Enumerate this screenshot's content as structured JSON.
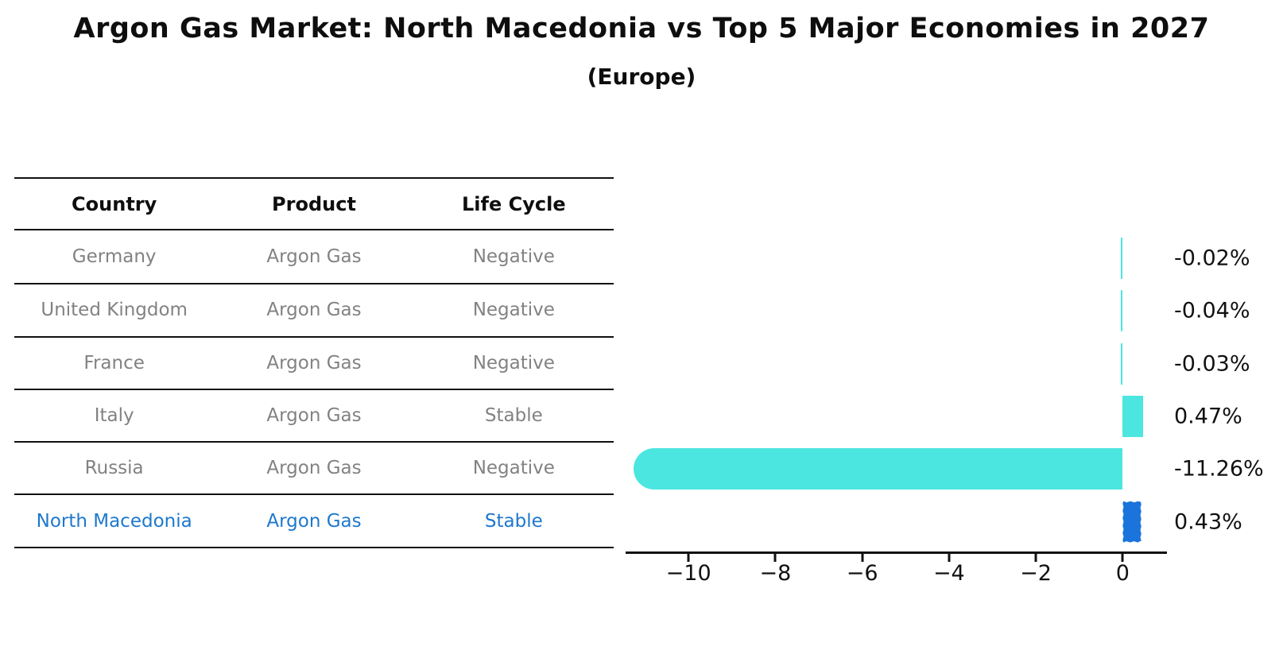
{
  "title": "Argon Gas Market: North Macedonia vs Top 5 Major Economies in 2027",
  "subtitle": "(Europe)",
  "table": {
    "headers": [
      "Country",
      "Product",
      "Life Cycle"
    ],
    "rows": [
      {
        "country": "Germany",
        "product": "Argon Gas",
        "life_cycle": "Negative",
        "highlight": false
      },
      {
        "country": "United Kingdom",
        "product": "Argon Gas",
        "life_cycle": "Negative",
        "highlight": false
      },
      {
        "country": "France",
        "product": "Argon Gas",
        "life_cycle": "Negative",
        "highlight": false
      },
      {
        "country": "Italy",
        "product": "Argon Gas",
        "life_cycle": "Stable",
        "highlight": false
      },
      {
        "country": "Russia",
        "product": "Argon Gas",
        "life_cycle": "Negative",
        "highlight": false
      },
      {
        "country": "North Macedonia",
        "product": "Argon Gas",
        "life_cycle": "Stable",
        "highlight": true
      }
    ]
  },
  "chart_data": {
    "type": "bar",
    "orientation": "horizontal",
    "title": "Argon Gas Market: North Macedonia vs Top 5 Major Economies in 2027 (Europe)",
    "categories": [
      "Germany",
      "United Kingdom",
      "France",
      "Italy",
      "Russia",
      "North Macedonia"
    ],
    "values": [
      -0.02,
      -0.04,
      -0.03,
      0.47,
      -11.26,
      0.43
    ],
    "bar_labels": [
      "-0.02%",
      "-0.04%",
      "-0.03%",
      "0.47%",
      "-11.26%",
      "0.43%"
    ],
    "bar_colors": [
      "#4BE6E0",
      "#4BE6E0",
      "#4BE6E0",
      "#4BE6E0",
      "#4BE6E0",
      "#1B74DB"
    ],
    "bar_styles": [
      "plain",
      "plain",
      "plain",
      "plain",
      "round",
      "sketch"
    ],
    "xlabel": "",
    "ylabel": "",
    "xlim": [
      -11.45,
      1.02
    ],
    "xticks": [
      -10,
      -8,
      -6,
      -4,
      -2,
      0
    ],
    "xtick_labels": [
      "−10",
      "−8",
      "−6",
      "−4",
      "−2",
      "0"
    ],
    "grid": false,
    "legend": "none",
    "colors": {
      "default_bar": "#4BE6E0",
      "highlight_bar": "#1B74DB",
      "highlight_text": "#1E78CC",
      "row_text": "#828282",
      "axis": "#111111"
    }
  }
}
